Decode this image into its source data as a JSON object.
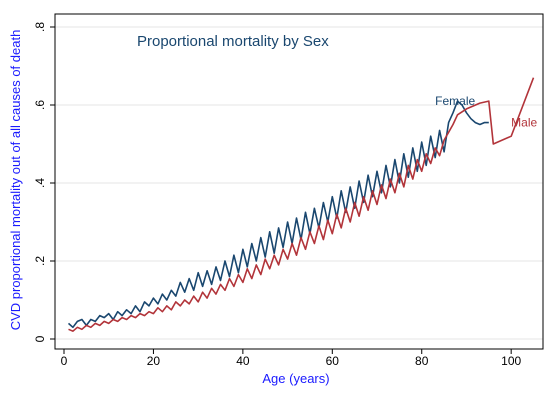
{
  "chart_data": {
    "type": "line",
    "title": "Proportional mortality by Sex",
    "xlabel": "Age (years)",
    "ylabel": "CVD proportional mortality out of all causes of death",
    "xlim": [
      0,
      106
    ],
    "ylim": [
      0,
      0.8
    ],
    "xticks": [
      0,
      20,
      40,
      60,
      80,
      100
    ],
    "yticks": [
      0,
      0.2,
      0.4,
      0.6,
      0.8
    ],
    "xtick_labels": [
      "0",
      "20",
      "40",
      "60",
      "80",
      "100"
    ],
    "ytick_labels": [
      "0",
      ".2",
      ".4",
      ".6",
      ".8"
    ],
    "grid": true,
    "colors": {
      "title": "#1a476f",
      "axis_label": "#1a1aff",
      "frame": "#000000",
      "grid": "#e6e6e6",
      "background": "#ffffff"
    },
    "series": [
      {
        "name": "Female",
        "color": "#1a476f",
        "points": [
          [
            1,
            0.04
          ],
          [
            2,
            0.03
          ],
          [
            3,
            0.045
          ],
          [
            4,
            0.05
          ],
          [
            5,
            0.035
          ],
          [
            6,
            0.05
          ],
          [
            7,
            0.045
          ],
          [
            8,
            0.06
          ],
          [
            9,
            0.055
          ],
          [
            10,
            0.065
          ],
          [
            11,
            0.05
          ],
          [
            12,
            0.07
          ],
          [
            13,
            0.06
          ],
          [
            14,
            0.075
          ],
          [
            15,
            0.065
          ],
          [
            16,
            0.085
          ],
          [
            17,
            0.07
          ],
          [
            18,
            0.095
          ],
          [
            19,
            0.085
          ],
          [
            20,
            0.105
          ],
          [
            21,
            0.09
          ],
          [
            22,
            0.115
          ],
          [
            23,
            0.1
          ],
          [
            24,
            0.125
          ],
          [
            25,
            0.11
          ],
          [
            26,
            0.145
          ],
          [
            27,
            0.12
          ],
          [
            28,
            0.155
          ],
          [
            29,
            0.125
          ],
          [
            30,
            0.17
          ],
          [
            31,
            0.135
          ],
          [
            32,
            0.175
          ],
          [
            33,
            0.14
          ],
          [
            34,
            0.185
          ],
          [
            35,
            0.15
          ],
          [
            36,
            0.2
          ],
          [
            37,
            0.16
          ],
          [
            38,
            0.215
          ],
          [
            39,
            0.17
          ],
          [
            40,
            0.23
          ],
          [
            41,
            0.185
          ],
          [
            42,
            0.245
          ],
          [
            43,
            0.2
          ],
          [
            44,
            0.26
          ],
          [
            45,
            0.21
          ],
          [
            46,
            0.275
          ],
          [
            47,
            0.22
          ],
          [
            48,
            0.285
          ],
          [
            49,
            0.235
          ],
          [
            50,
            0.3
          ],
          [
            51,
            0.245
          ],
          [
            52,
            0.31
          ],
          [
            53,
            0.255
          ],
          [
            54,
            0.325
          ],
          [
            55,
            0.27
          ],
          [
            56,
            0.335
          ],
          [
            57,
            0.285
          ],
          [
            58,
            0.35
          ],
          [
            59,
            0.3
          ],
          [
            60,
            0.365
          ],
          [
            61,
            0.31
          ],
          [
            62,
            0.38
          ],
          [
            63,
            0.325
          ],
          [
            64,
            0.39
          ],
          [
            65,
            0.335
          ],
          [
            66,
            0.405
          ],
          [
            67,
            0.35
          ],
          [
            68,
            0.42
          ],
          [
            69,
            0.365
          ],
          [
            70,
            0.43
          ],
          [
            71,
            0.375
          ],
          [
            72,
            0.445
          ],
          [
            73,
            0.39
          ],
          [
            74,
            0.46
          ],
          [
            75,
            0.4
          ],
          [
            76,
            0.475
          ],
          [
            77,
            0.415
          ],
          [
            78,
            0.49
          ],
          [
            79,
            0.43
          ],
          [
            80,
            0.505
          ],
          [
            81,
            0.445
          ],
          [
            82,
            0.52
          ],
          [
            83,
            0.465
          ],
          [
            84,
            0.535
          ],
          [
            85,
            0.48
          ],
          [
            86,
            0.555
          ],
          [
            87,
            0.58
          ],
          [
            88,
            0.61
          ],
          [
            89,
            0.6
          ],
          [
            90,
            0.58
          ],
          [
            91,
            0.565
          ],
          [
            92,
            0.555
          ],
          [
            93,
            0.55
          ],
          [
            94,
            0.555
          ],
          [
            95,
            0.555
          ]
        ]
      },
      {
        "name": "Male",
        "color": "#b2343a",
        "points": [
          [
            1,
            0.025
          ],
          [
            2,
            0.02
          ],
          [
            3,
            0.03
          ],
          [
            4,
            0.025
          ],
          [
            5,
            0.035
          ],
          [
            6,
            0.03
          ],
          [
            7,
            0.04
          ],
          [
            8,
            0.035
          ],
          [
            9,
            0.045
          ],
          [
            10,
            0.04
          ],
          [
            11,
            0.05
          ],
          [
            12,
            0.045
          ],
          [
            13,
            0.055
          ],
          [
            14,
            0.05
          ],
          [
            15,
            0.06
          ],
          [
            16,
            0.055
          ],
          [
            17,
            0.065
          ],
          [
            18,
            0.06
          ],
          [
            19,
            0.07
          ],
          [
            20,
            0.065
          ],
          [
            21,
            0.08
          ],
          [
            22,
            0.07
          ],
          [
            23,
            0.085
          ],
          [
            24,
            0.075
          ],
          [
            25,
            0.095
          ],
          [
            26,
            0.085
          ],
          [
            27,
            0.1
          ],
          [
            28,
            0.09
          ],
          [
            29,
            0.11
          ],
          [
            30,
            0.095
          ],
          [
            31,
            0.12
          ],
          [
            32,
            0.105
          ],
          [
            33,
            0.13
          ],
          [
            34,
            0.115
          ],
          [
            35,
            0.14
          ],
          [
            36,
            0.125
          ],
          [
            37,
            0.155
          ],
          [
            38,
            0.135
          ],
          [
            39,
            0.165
          ],
          [
            40,
            0.145
          ],
          [
            41,
            0.18
          ],
          [
            42,
            0.155
          ],
          [
            43,
            0.19
          ],
          [
            44,
            0.165
          ],
          [
            45,
            0.205
          ],
          [
            46,
            0.18
          ],
          [
            47,
            0.215
          ],
          [
            48,
            0.19
          ],
          [
            49,
            0.23
          ],
          [
            50,
            0.205
          ],
          [
            51,
            0.245
          ],
          [
            52,
            0.215
          ],
          [
            53,
            0.26
          ],
          [
            54,
            0.23
          ],
          [
            55,
            0.275
          ],
          [
            56,
            0.245
          ],
          [
            57,
            0.29
          ],
          [
            58,
            0.255
          ],
          [
            59,
            0.305
          ],
          [
            60,
            0.27
          ],
          [
            61,
            0.32
          ],
          [
            62,
            0.285
          ],
          [
            63,
            0.335
          ],
          [
            64,
            0.3
          ],
          [
            65,
            0.35
          ],
          [
            66,
            0.315
          ],
          [
            67,
            0.365
          ],
          [
            68,
            0.33
          ],
          [
            69,
            0.38
          ],
          [
            70,
            0.345
          ],
          [
            71,
            0.395
          ],
          [
            72,
            0.36
          ],
          [
            73,
            0.41
          ],
          [
            74,
            0.375
          ],
          [
            75,
            0.425
          ],
          [
            76,
            0.39
          ],
          [
            77,
            0.445
          ],
          [
            78,
            0.41
          ],
          [
            79,
            0.46
          ],
          [
            80,
            0.43
          ],
          [
            81,
            0.475
          ],
          [
            82,
            0.45
          ],
          [
            83,
            0.49
          ],
          [
            84,
            0.47
          ],
          [
            85,
            0.51
          ],
          [
            86,
            0.53
          ],
          [
            87,
            0.55
          ],
          [
            88,
            0.575
          ],
          [
            90,
            0.59
          ],
          [
            93,
            0.605
          ],
          [
            95,
            0.61
          ],
          [
            96,
            0.5
          ],
          [
            100,
            0.52
          ],
          [
            105,
            0.67
          ]
        ]
      }
    ],
    "labels": [
      {
        "series": "Female",
        "text": "Female",
        "x": 83,
        "y": 0.6
      },
      {
        "series": "Male",
        "text": "Male",
        "x": 100,
        "y": 0.545
      }
    ]
  }
}
